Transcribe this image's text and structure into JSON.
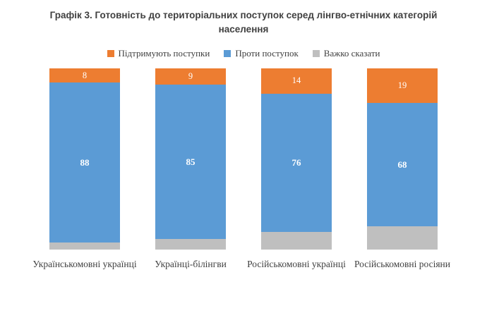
{
  "title": "Графік 3. Готовність до територіальних поступок серед лінгво-етнічних категорій населення",
  "chart_data": {
    "type": "bar",
    "stacked": true,
    "percent_stacked": true,
    "title": "Графік 3. Готовність до територіальних поступок серед лінгво-етнічних категорій населення",
    "categories": [
      "Українськомовні українці",
      "Українці-білінгви",
      "Російськомовні українці",
      "Російськомовні росіяни"
    ],
    "series": [
      {
        "name": "Підтримують поступки",
        "color": "#ED7D31",
        "values": [
          8,
          9,
          14,
          19
        ],
        "show_labels": true,
        "bold_labels": false
      },
      {
        "name": "Проти поступок",
        "color": "#5B9BD5",
        "values": [
          88,
          85,
          76,
          68
        ],
        "show_labels": true,
        "bold_labels": true
      },
      {
        "name": "Важко сказати",
        "color": "#BFBFBF",
        "values": [
          4,
          6,
          10,
          13
        ],
        "show_labels": false,
        "bold_labels": false
      }
    ],
    "xlabel": "",
    "ylabel": "",
    "ylim": [
      0,
      100
    ],
    "grid": false,
    "legend_position": "top"
  }
}
